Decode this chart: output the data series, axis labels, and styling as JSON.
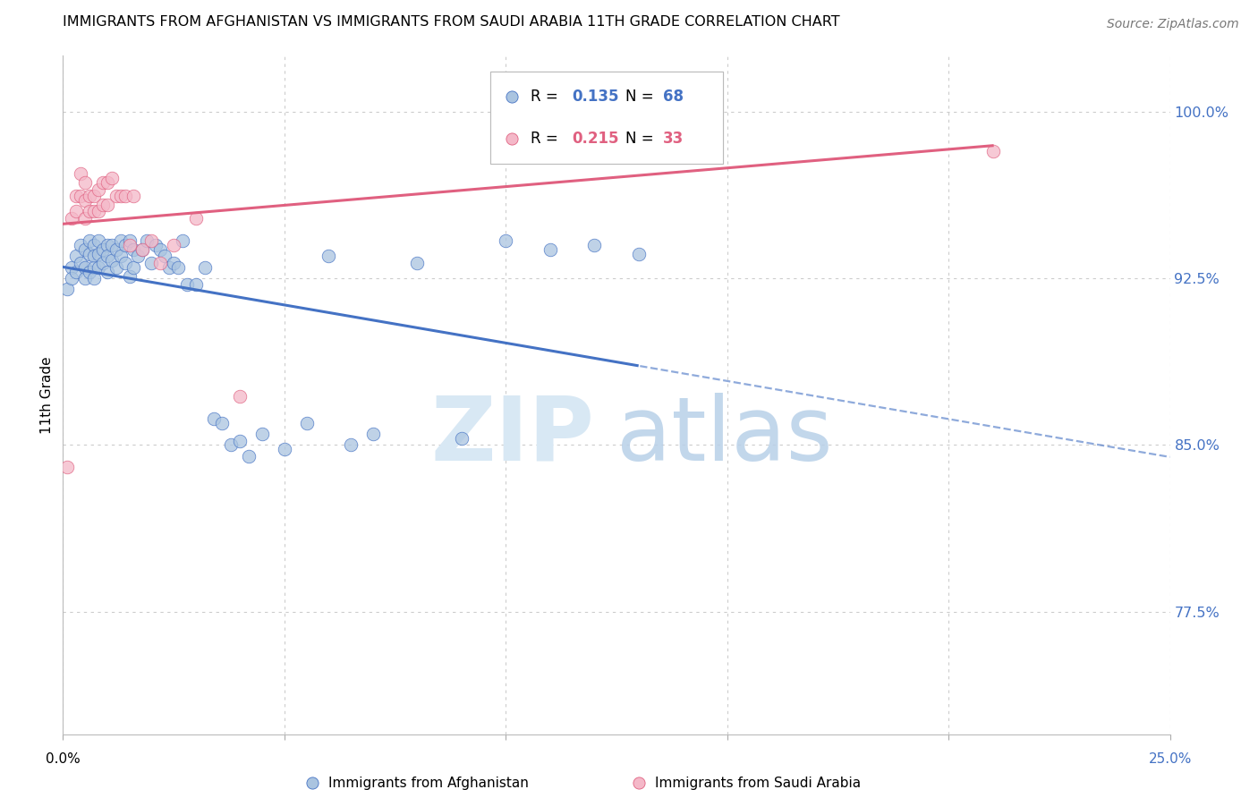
{
  "title": "IMMIGRANTS FROM AFGHANISTAN VS IMMIGRANTS FROM SAUDI ARABIA 11TH GRADE CORRELATION CHART",
  "source": "Source: ZipAtlas.com",
  "ylabel": "11th Grade",
  "afghanistan_R": 0.135,
  "afghanistan_N": 68,
  "saudi_R": 0.215,
  "saudi_N": 33,
  "afghanistan_color": "#aac4e0",
  "afghanistan_line_color": "#4472c4",
  "saudi_color": "#f4b8c8",
  "saudi_line_color": "#e06080",
  "xlim": [
    0.0,
    0.25
  ],
  "ylim": [
    0.72,
    1.025
  ],
  "ytick_vals": [
    0.775,
    0.85,
    0.925,
    1.0
  ],
  "ytick_labels": [
    "77.5%",
    "85.0%",
    "92.5%",
    "100.0%"
  ],
  "xtick_vals": [
    0.0,
    0.05,
    0.1,
    0.15,
    0.2,
    0.25
  ],
  "afghanistan_x": [
    0.001,
    0.002,
    0.002,
    0.003,
    0.003,
    0.004,
    0.004,
    0.005,
    0.005,
    0.005,
    0.006,
    0.006,
    0.006,
    0.007,
    0.007,
    0.007,
    0.007,
    0.008,
    0.008,
    0.008,
    0.009,
    0.009,
    0.01,
    0.01,
    0.01,
    0.011,
    0.011,
    0.012,
    0.012,
    0.013,
    0.013,
    0.014,
    0.014,
    0.015,
    0.015,
    0.016,
    0.016,
    0.017,
    0.018,
    0.019,
    0.02,
    0.021,
    0.022,
    0.023,
    0.024,
    0.025,
    0.026,
    0.027,
    0.028,
    0.03,
    0.032,
    0.034,
    0.036,
    0.038,
    0.04,
    0.042,
    0.045,
    0.05,
    0.055,
    0.06,
    0.065,
    0.07,
    0.08,
    0.09,
    0.1,
    0.11,
    0.12,
    0.13
  ],
  "afghanistan_y": [
    0.92,
    0.93,
    0.925,
    0.935,
    0.928,
    0.94,
    0.932,
    0.938,
    0.93,
    0.925,
    0.942,
    0.936,
    0.928,
    0.94,
    0.935,
    0.93,
    0.925,
    0.942,
    0.936,
    0.93,
    0.938,
    0.932,
    0.94,
    0.935,
    0.928,
    0.94,
    0.933,
    0.938,
    0.93,
    0.942,
    0.935,
    0.94,
    0.932,
    0.942,
    0.926,
    0.938,
    0.93,
    0.935,
    0.938,
    0.942,
    0.932,
    0.94,
    0.938,
    0.935,
    0.93,
    0.932,
    0.93,
    0.942,
    0.922,
    0.922,
    0.93,
    0.862,
    0.86,
    0.85,
    0.852,
    0.845,
    0.855,
    0.848,
    0.86,
    0.935,
    0.85,
    0.855,
    0.932,
    0.853,
    0.942,
    0.938,
    0.94,
    0.936
  ],
  "saudi_x": [
    0.001,
    0.002,
    0.003,
    0.003,
    0.004,
    0.004,
    0.005,
    0.005,
    0.005,
    0.006,
    0.006,
    0.007,
    0.007,
    0.008,
    0.008,
    0.009,
    0.009,
    0.01,
    0.01,
    0.011,
    0.012,
    0.013,
    0.014,
    0.015,
    0.016,
    0.018,
    0.02,
    0.022,
    0.025,
    0.03,
    0.04,
    0.12,
    0.21
  ],
  "saudi_y": [
    0.84,
    0.952,
    0.962,
    0.955,
    0.972,
    0.962,
    0.968,
    0.96,
    0.952,
    0.962,
    0.955,
    0.962,
    0.955,
    0.965,
    0.955,
    0.968,
    0.958,
    0.968,
    0.958,
    0.97,
    0.962,
    0.962,
    0.962,
    0.94,
    0.962,
    0.938,
    0.942,
    0.932,
    0.94,
    0.952,
    0.872,
    1.0,
    0.982
  ]
}
